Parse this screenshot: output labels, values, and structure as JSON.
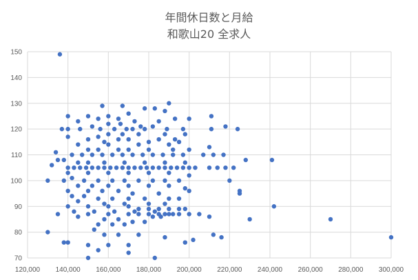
{
  "chart_data": {
    "type": "scatter",
    "title": "年間休日数と月給",
    "subtitle": "和歌山20  全求人",
    "xlabel": "",
    "ylabel": "",
    "xlim": [
      120000,
      300000
    ],
    "ylim": [
      70,
      150
    ],
    "x_ticks": [
      "120,000",
      "140,000",
      "160,000",
      "180,000",
      "200,000",
      "220,000",
      "240,000",
      "260,000",
      "280,000",
      "300,000"
    ],
    "y_ticks": [
      "70",
      "80",
      "90",
      "100",
      "110",
      "120",
      "130",
      "140",
      "150"
    ],
    "grid": "horizontal and vertical",
    "legend": "none",
    "marker_color": "#4472C4",
    "series": [
      {
        "points": [
          [
            136000,
            149
          ],
          [
            190000,
            130
          ],
          [
            167000,
            129
          ],
          [
            157000,
            129
          ],
          [
            183000,
            128
          ],
          [
            178000,
            128
          ],
          [
            188000,
            127
          ],
          [
            170000,
            126
          ],
          [
            160000,
            125
          ],
          [
            211000,
            125
          ],
          [
            140000,
            125
          ],
          [
            150000,
            125
          ],
          [
            155000,
            124
          ],
          [
            165000,
            124
          ],
          [
            173000,
            123
          ],
          [
            185000,
            123
          ],
          [
            193000,
            124
          ],
          [
            145000,
            123
          ],
          [
            200000,
            124
          ],
          [
            166000,
            122
          ],
          [
            160000,
            122
          ],
          [
            176000,
            121
          ],
          [
            137000,
            120
          ],
          [
            140000,
            120
          ],
          [
            146000,
            120
          ],
          [
            152000,
            121
          ],
          [
            156000,
            120
          ],
          [
            163000,
            120
          ],
          [
            169000,
            120
          ],
          [
            172000,
            120
          ],
          [
            178000,
            120
          ],
          [
            182000,
            121
          ],
          [
            189000,
            120
          ],
          [
            197000,
            120
          ],
          [
            211000,
            120
          ],
          [
            218000,
            121
          ],
          [
            224000,
            120
          ],
          [
            160000,
            118
          ],
          [
            167000,
            118
          ],
          [
            175000,
            118
          ],
          [
            188000,
            118
          ],
          [
            198000,
            118
          ],
          [
            155000,
            117
          ],
          [
            140000,
            117
          ],
          [
            150000,
            116
          ],
          [
            165000,
            116
          ],
          [
            170000,
            116
          ],
          [
            185000,
            116
          ],
          [
            193000,
            116
          ],
          [
            158000,
            115
          ],
          [
            180000,
            115
          ],
          [
            195000,
            115
          ],
          [
            145000,
            114
          ],
          [
            160000,
            114
          ],
          [
            175000,
            114
          ],
          [
            190000,
            114
          ],
          [
            210000,
            113
          ],
          [
            150000,
            112
          ],
          [
            155000,
            112
          ],
          [
            165000,
            112
          ],
          [
            170000,
            112
          ],
          [
            180000,
            112
          ],
          [
            192000,
            112
          ],
          [
            200000,
            112
          ],
          [
            142000,
            110
          ],
          [
            147000,
            110
          ],
          [
            152000,
            110
          ],
          [
            157000,
            110
          ],
          [
            162000,
            110
          ],
          [
            167000,
            110
          ],
          [
            172000,
            110
          ],
          [
            177000,
            110
          ],
          [
            182000,
            110
          ],
          [
            187000,
            110
          ],
          [
            192000,
            110
          ],
          [
            197000,
            110
          ],
          [
            207000,
            110
          ],
          [
            212000,
            110
          ],
          [
            217000,
            110
          ],
          [
            228000,
            108
          ],
          [
            241000,
            108
          ],
          [
            134000,
            111
          ],
          [
            135000,
            108
          ],
          [
            132000,
            106
          ],
          [
            138000,
            108
          ],
          [
            145000,
            107
          ],
          [
            150000,
            107
          ],
          [
            158000,
            107
          ],
          [
            168000,
            107
          ],
          [
            178000,
            107
          ],
          [
            188000,
            107
          ],
          [
            198000,
            107
          ],
          [
            140000,
            105
          ],
          [
            143000,
            105
          ],
          [
            146000,
            105
          ],
          [
            149000,
            105
          ],
          [
            152000,
            105
          ],
          [
            155000,
            105
          ],
          [
            158000,
            105
          ],
          [
            161000,
            105
          ],
          [
            164000,
            105
          ],
          [
            167000,
            105
          ],
          [
            170000,
            105
          ],
          [
            173000,
            105
          ],
          [
            176000,
            105
          ],
          [
            179000,
            105
          ],
          [
            182000,
            105
          ],
          [
            185000,
            105
          ],
          [
            188000,
            105
          ],
          [
            191000,
            105
          ],
          [
            194000,
            105
          ],
          [
            197000,
            105
          ],
          [
            200000,
            105
          ],
          [
            203000,
            105
          ],
          [
            210000,
            105
          ],
          [
            214000,
            105
          ],
          [
            218000,
            105
          ],
          [
            222000,
            105
          ],
          [
            140000,
            103
          ],
          [
            150000,
            103
          ],
          [
            160000,
            103
          ],
          [
            170000,
            103
          ],
          [
            180000,
            103
          ],
          [
            190000,
            103
          ],
          [
            200000,
            102
          ],
          [
            138000,
            100
          ],
          [
            142000,
            101
          ],
          [
            148000,
            100
          ],
          [
            155000,
            100
          ],
          [
            162000,
            100
          ],
          [
            168000,
            100
          ],
          [
            175000,
            100
          ],
          [
            182000,
            100
          ],
          [
            188000,
            100
          ],
          [
            195000,
            100
          ],
          [
            220000,
            100
          ],
          [
            130000,
            100
          ],
          [
            145000,
            98
          ],
          [
            152000,
            98
          ],
          [
            160000,
            98
          ],
          [
            170000,
            98
          ],
          [
            180000,
            98
          ],
          [
            190000,
            98
          ],
          [
            198000,
            97
          ],
          [
            140000,
            96
          ],
          [
            150000,
            96
          ],
          [
            157000,
            96
          ],
          [
            165000,
            96
          ],
          [
            172000,
            95
          ],
          [
            185000,
            95
          ],
          [
            200000,
            96
          ],
          [
            225000,
            96
          ],
          [
            225000,
            95
          ],
          [
            142000,
            94
          ],
          [
            148000,
            94
          ],
          [
            155000,
            93
          ],
          [
            162000,
            93
          ],
          [
            170000,
            93
          ],
          [
            178000,
            93
          ],
          [
            190000,
            93
          ],
          [
            195000,
            93
          ],
          [
            145000,
            92
          ],
          [
            158000,
            91
          ],
          [
            168000,
            91
          ],
          [
            180000,
            91
          ],
          [
            188000,
            91
          ],
          [
            242000,
            90
          ],
          [
            140000,
            90
          ],
          [
            150000,
            90
          ],
          [
            160000,
            90
          ],
          [
            170000,
            90
          ],
          [
            175000,
            89
          ],
          [
            180000,
            89
          ],
          [
            185000,
            89
          ],
          [
            190000,
            89
          ],
          [
            195000,
            89
          ],
          [
            198000,
            89
          ],
          [
            143000,
            88
          ],
          [
            153000,
            88
          ],
          [
            163000,
            88
          ],
          [
            173000,
            88
          ],
          [
            183000,
            88
          ],
          [
            135000,
            87
          ],
          [
            150000,
            87
          ],
          [
            160000,
            87
          ],
          [
            170000,
            87
          ],
          [
            175000,
            87
          ],
          [
            180000,
            87
          ],
          [
            185000,
            87
          ],
          [
            188000,
            87
          ],
          [
            190000,
            87
          ],
          [
            192000,
            87
          ],
          [
            195000,
            87
          ],
          [
            200000,
            87
          ],
          [
            205000,
            87
          ],
          [
            210000,
            86
          ],
          [
            182000,
            86
          ],
          [
            186000,
            86
          ],
          [
            145000,
            86
          ],
          [
            158000,
            85
          ],
          [
            165000,
            85
          ],
          [
            172000,
            84
          ],
          [
            178000,
            84
          ],
          [
            230000,
            85
          ],
          [
            270000,
            85
          ],
          [
            155000,
            83
          ],
          [
            162000,
            83
          ],
          [
            168000,
            83
          ],
          [
            130000,
            80
          ],
          [
            153000,
            81
          ],
          [
            158000,
            79
          ],
          [
            165000,
            79
          ],
          [
            175000,
            79
          ],
          [
            188000,
            78
          ],
          [
            212000,
            79
          ],
          [
            216000,
            78
          ],
          [
            300000,
            78
          ],
          [
            138000,
            76
          ],
          [
            140000,
            76
          ],
          [
            150000,
            75
          ],
          [
            160000,
            75
          ],
          [
            170000,
            75
          ],
          [
            198000,
            76
          ],
          [
            202000,
            77
          ],
          [
            155000,
            73
          ],
          [
            170000,
            72
          ],
          [
            150000,
            70
          ],
          [
            183000,
            70
          ]
        ]
      }
    ]
  }
}
